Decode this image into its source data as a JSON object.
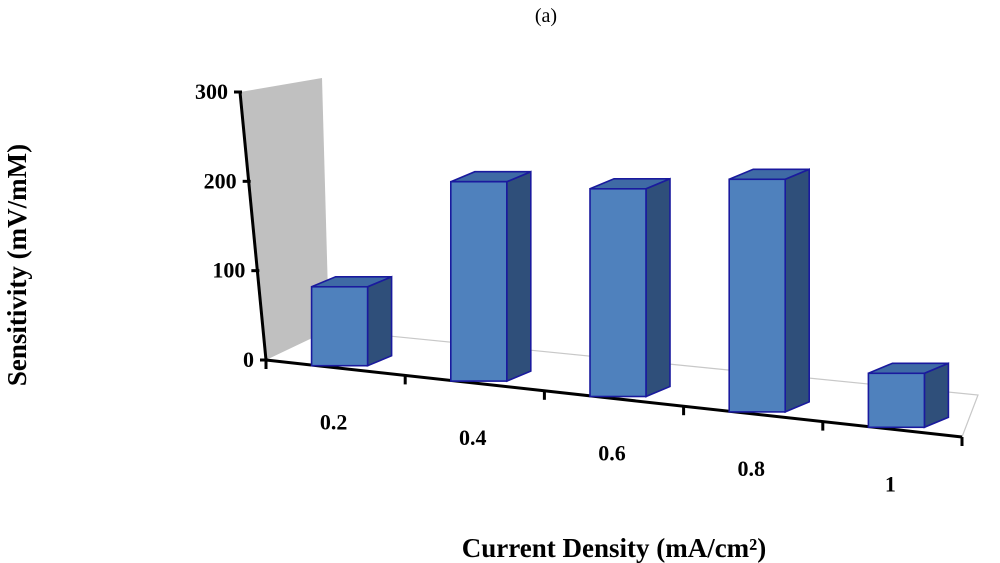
{
  "figure_label": "(a)",
  "chart_data": {
    "type": "bar",
    "title": "",
    "xlabel": "Current Density (mA/cm²)",
    "ylabel": "Sensitivity (mV/mM)",
    "categories": [
      "0.2",
      "0.4",
      "0.6",
      "0.8",
      "1"
    ],
    "values": [
      95,
      240,
      250,
      280,
      65
    ],
    "ylim": [
      0,
      300
    ],
    "yticks": [
      "0",
      "100",
      "200",
      "300"
    ],
    "grid": false,
    "legend": "none",
    "colors": {
      "bar_front": "#4f81bd",
      "bar_side": "#2f4f7a",
      "bar_top": "#3f6aa5",
      "bar_outline": "#1a1a9e",
      "back_wall": "#c0c0c0",
      "axis": "#000000"
    }
  }
}
